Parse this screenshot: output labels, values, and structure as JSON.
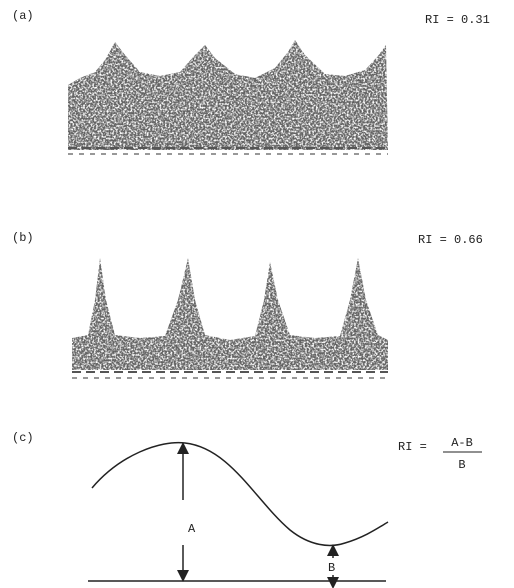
{
  "panels": [
    {
      "label": "(a)",
      "ri": "RI = 0.31"
    },
    {
      "label": "(b)",
      "ri": "RI = 0.66"
    },
    {
      "label": "(c)",
      "ri": "RI =",
      "numerator": "A-B",
      "denominator": "B",
      "arrow_a": "A",
      "arrow_b": "B"
    }
  ]
}
